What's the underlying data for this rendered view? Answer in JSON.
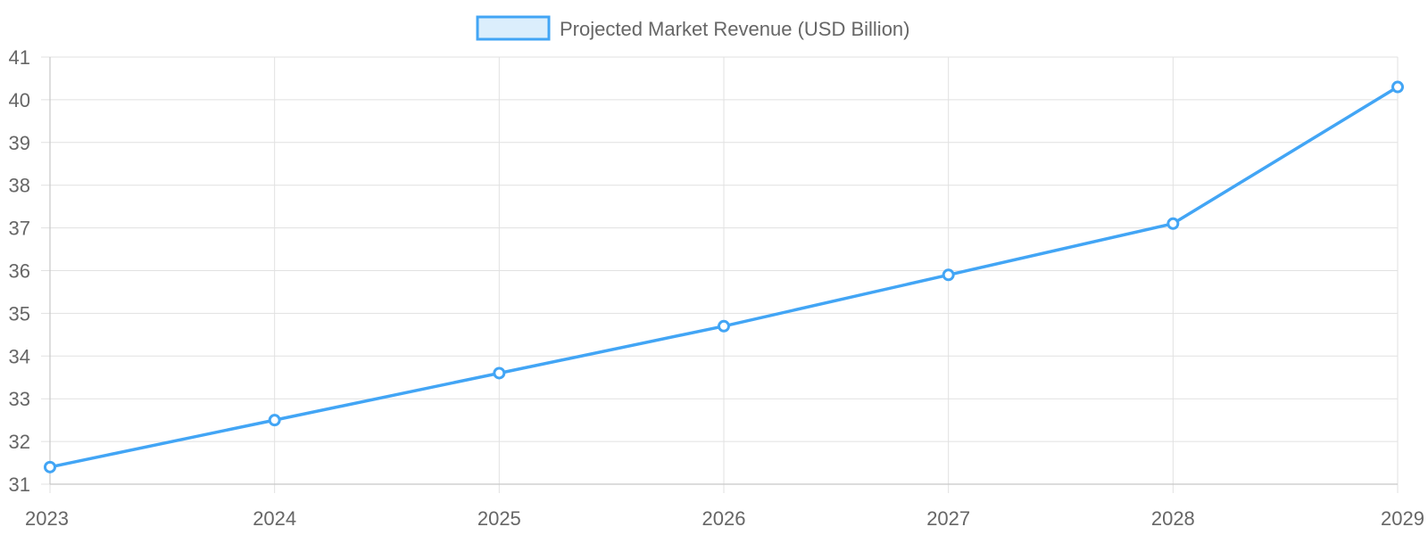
{
  "chart_data": {
    "type": "line",
    "x": [
      "2023",
      "2024",
      "2025",
      "2026",
      "2027",
      "2028",
      "2029"
    ],
    "series": [
      {
        "name": "Projected Market Revenue (USD Billion)",
        "values": [
          31.4,
          32.5,
          33.6,
          34.7,
          35.9,
          37.1,
          40.3
        ]
      }
    ],
    "ylim": [
      31,
      41
    ],
    "yticks": [
      31,
      32,
      33,
      34,
      35,
      36,
      37,
      38,
      39,
      40,
      41
    ],
    "grid": true,
    "legend_position": "top-center",
    "colors": {
      "line": "#42a5f5",
      "legend_fill": "#dbeefc"
    }
  }
}
